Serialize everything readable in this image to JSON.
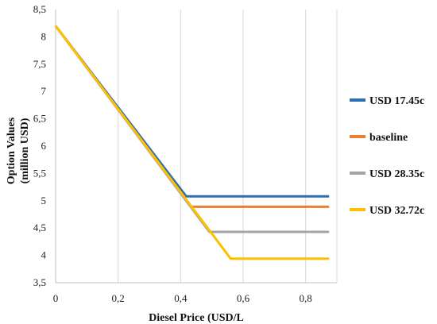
{
  "chart_data": {
    "type": "line",
    "title": "",
    "xlabel": "Diesel Price (USD/L",
    "ylabel": "Option Values (million USD)",
    "ylabel_lines": [
      "Option Values",
      "(million USD)"
    ],
    "xlim": [
      0,
      0.9
    ],
    "ylim": [
      3.5,
      8.5
    ],
    "x_ticks": [
      0,
      0.2,
      0.4,
      0.6,
      0.8
    ],
    "x_tick_labels": [
      "0",
      "0,2",
      "0,4",
      "0,6",
      "0,8"
    ],
    "y_ticks": [
      3.5,
      4,
      4.5,
      5,
      5.5,
      6,
      6.5,
      7,
      7.5,
      8,
      8.5
    ],
    "y_tick_labels": [
      "3,5",
      "4",
      "4,5",
      "5",
      "5,5",
      "6",
      "6,5",
      "7",
      "7,5",
      "8",
      "8,5"
    ],
    "grid": "vertical",
    "legend_position": "right",
    "series": [
      {
        "name": "USD 17.45c",
        "color": "#2E6DB4",
        "x": [
          0,
          0.418,
          0.875
        ],
        "y": [
          8.2,
          5.08,
          5.08
        ]
      },
      {
        "name": "baseline",
        "color": "#ED7D31",
        "x": [
          0,
          0.433,
          0.875
        ],
        "y": [
          8.2,
          4.89,
          4.89
        ]
      },
      {
        "name": "USD 28.35c",
        "color": "#A5A5A5",
        "x": [
          0,
          0.492,
          0.875
        ],
        "y": [
          8.2,
          4.43,
          4.43
        ]
      },
      {
        "name": "USD 32.72c",
        "color": "#FFC000",
        "x": [
          0,
          0.56,
          0.875
        ],
        "y": [
          8.2,
          3.94,
          3.94
        ]
      }
    ]
  }
}
